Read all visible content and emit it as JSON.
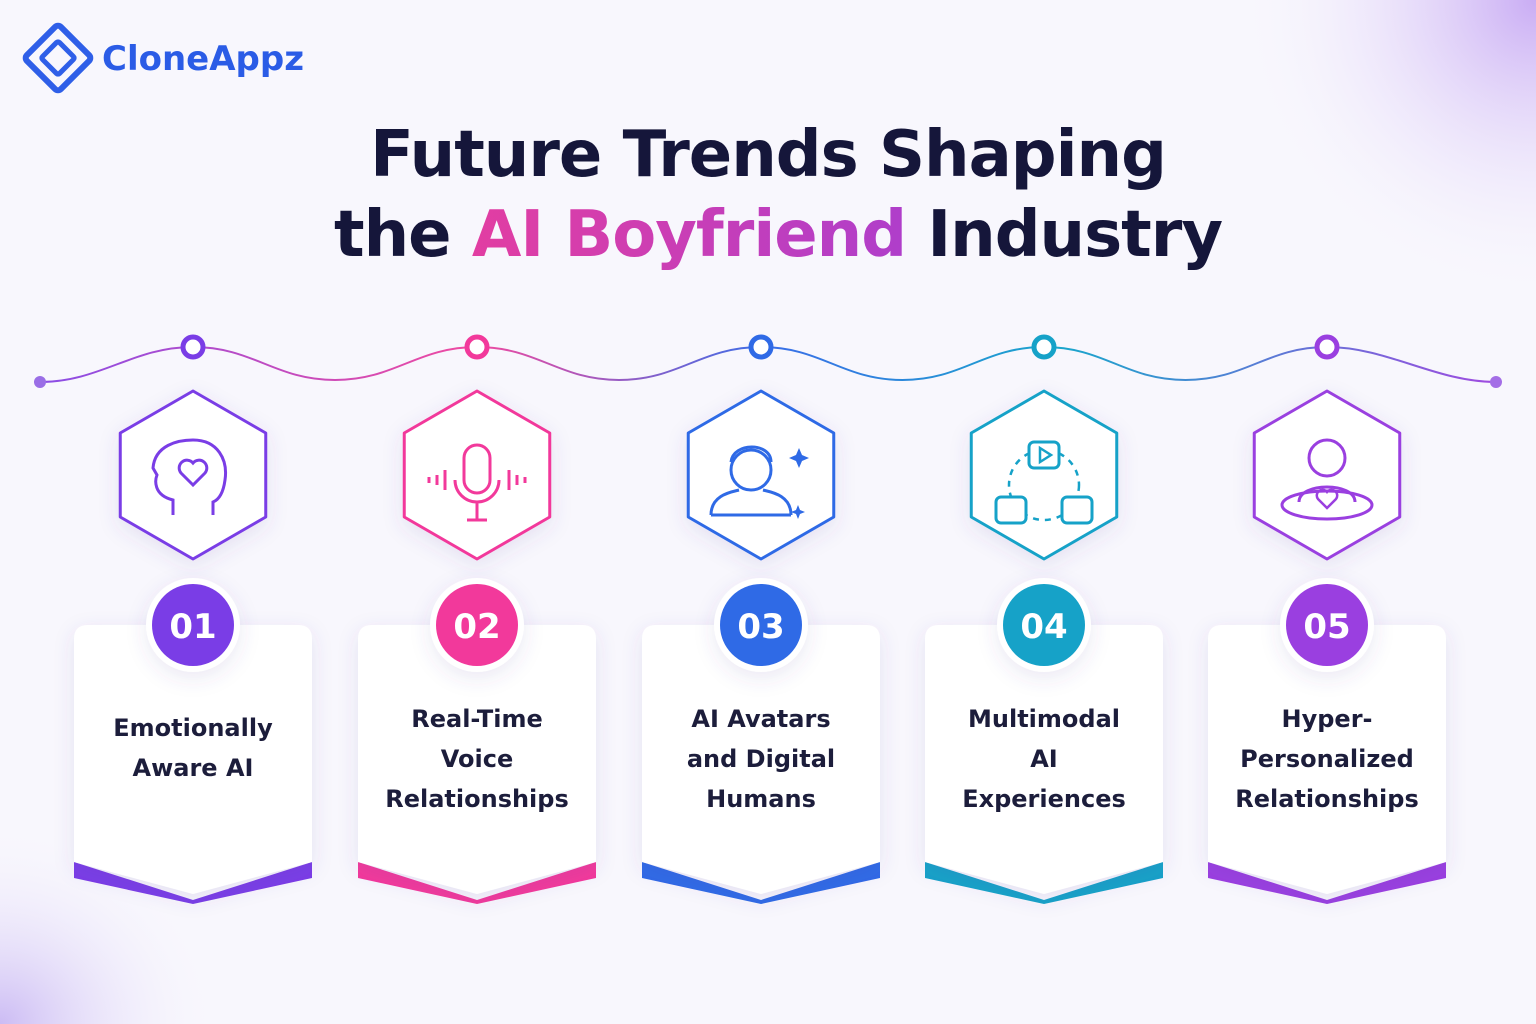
{
  "logo": "CloneAppz",
  "title": {
    "line1": "Future Trends Shaping",
    "line2_start": "the",
    "highlight": "AI Boyfriend",
    "line2_end": "Industry"
  },
  "cards": [
    {
      "number": "01",
      "lines": [
        "Emotionally",
        "Aware AI"
      ],
      "color": "#7a3de6"
    },
    {
      "number": "02",
      "lines": [
        "Real-Time",
        "Voice",
        "Relationships"
      ],
      "color": "#f2399b"
    },
    {
      "number": "03",
      "lines": [
        "AI Avatars",
        "and Digital",
        "Humans"
      ],
      "color": "#2f6ae6"
    },
    {
      "number": "04",
      "lines": [
        "Multimodal",
        "AI",
        "Experiences"
      ],
      "color": "#16a2c8"
    },
    {
      "number": "05",
      "lines": [
        "Hyper-",
        "Personalized",
        "Relationships"
      ],
      "color": "#9a3fe0"
    }
  ]
}
